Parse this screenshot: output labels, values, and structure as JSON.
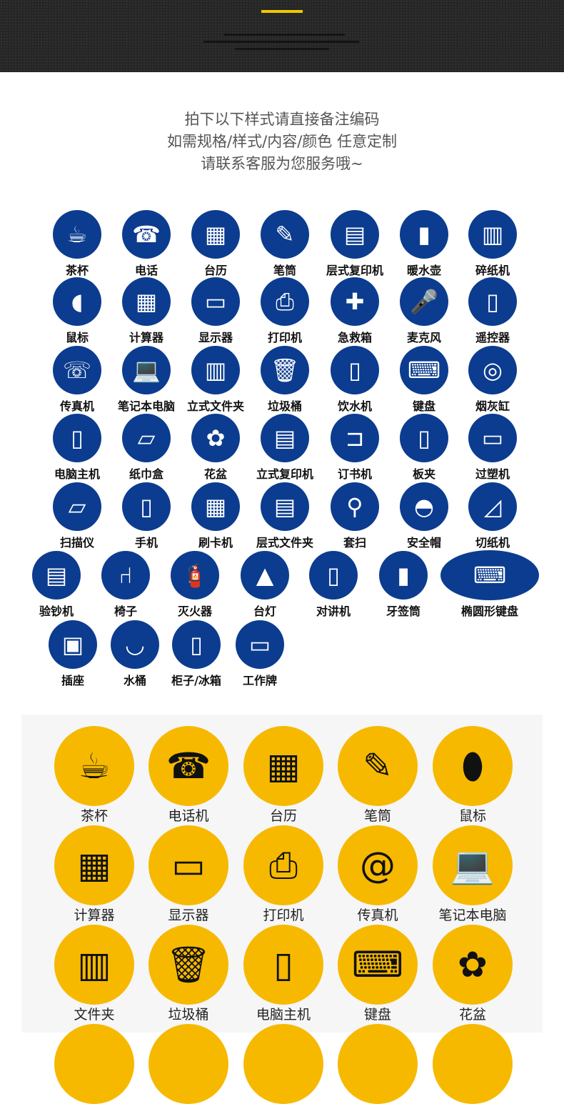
{
  "colors": {
    "header_bg": "#262626",
    "accent": "#f0c800",
    "blue_icon": "#0b3c8f",
    "yellow_icon": "#f6b900"
  },
  "intro": [
    "拍下以下样式请直接备注编码",
    "如需规格/样式/内容/颜色 任意定制",
    "请联系客服为您服务哦~"
  ],
  "blue_rows": [
    [
      {
        "label": "茶杯",
        "icon": "☕"
      },
      {
        "label": "电话",
        "icon": "☎"
      },
      {
        "label": "台历",
        "icon": "▦"
      },
      {
        "label": "笔筒",
        "icon": "✎"
      },
      {
        "label": "层式复印机",
        "icon": "▤"
      },
      {
        "label": "暖水壶",
        "icon": "▮"
      },
      {
        "label": "碎纸机",
        "icon": "▥"
      }
    ],
    [
      {
        "label": "鼠标",
        "icon": "◖"
      },
      {
        "label": "计算器",
        "icon": "▦"
      },
      {
        "label": "显示器",
        "icon": "▭"
      },
      {
        "label": "打印机",
        "icon": "⎙"
      },
      {
        "label": "急救箱",
        "icon": "✚"
      },
      {
        "label": "麦克风",
        "icon": "🎤"
      },
      {
        "label": "遥控器",
        "icon": "▯"
      }
    ],
    [
      {
        "label": "传真机",
        "icon": "☏"
      },
      {
        "label": "笔记本电脑",
        "icon": "💻"
      },
      {
        "label": "立式文件夹",
        "icon": "▥"
      },
      {
        "label": "垃圾桶",
        "icon": "🗑"
      },
      {
        "label": "饮水机",
        "icon": "▯"
      },
      {
        "label": "键盘",
        "icon": "⌨"
      },
      {
        "label": "烟灰缸",
        "icon": "◎"
      }
    ],
    [
      {
        "label": "电脑主机",
        "icon": "▯"
      },
      {
        "label": "纸巾盒",
        "icon": "▱"
      },
      {
        "label": "花盆",
        "icon": "✿"
      },
      {
        "label": "立式复印机",
        "icon": "▤"
      },
      {
        "label": "订书机",
        "icon": "⊐"
      },
      {
        "label": "板夹",
        "icon": "▯"
      },
      {
        "label": "过塑机",
        "icon": "▭"
      }
    ],
    [
      {
        "label": "扫描仪",
        "icon": "▱"
      },
      {
        "label": "手机",
        "icon": "▯"
      },
      {
        "label": "刷卡机",
        "icon": "▦"
      },
      {
        "label": "层式文件夹",
        "icon": "▤"
      },
      {
        "label": "套扫",
        "icon": "⚲"
      },
      {
        "label": "安全帽",
        "icon": "◓"
      },
      {
        "label": "切纸机",
        "icon": "◿"
      }
    ],
    [
      {
        "label": "验钞机",
        "icon": "▤"
      },
      {
        "label": "椅子",
        "icon": "⑁"
      },
      {
        "label": "灭火器",
        "icon": "🧯"
      },
      {
        "label": "台灯",
        "icon": "▲"
      },
      {
        "label": "对讲机",
        "icon": "▯"
      },
      {
        "label": "牙签筒",
        "icon": "▮"
      },
      {
        "label": "椭圆形键盘",
        "icon": "⌨"
      }
    ],
    [
      {
        "label": "插座",
        "icon": "▣"
      },
      {
        "label": "水桶",
        "icon": "◡"
      },
      {
        "label": "柜子/冰箱",
        "icon": "▯"
      },
      {
        "label": "工作牌",
        "icon": "▭"
      }
    ]
  ],
  "yellow_rows": [
    [
      {
        "label": "茶杯",
        "icon": "☕"
      },
      {
        "label": "电话机",
        "icon": "☎"
      },
      {
        "label": "台历",
        "icon": "▦"
      },
      {
        "label": "笔筒",
        "icon": "✎"
      },
      {
        "label": "鼠标",
        "icon": "⬮"
      }
    ],
    [
      {
        "label": "计算器",
        "icon": "▦"
      },
      {
        "label": "显示器",
        "icon": "▭"
      },
      {
        "label": "打印机",
        "icon": "⎙"
      },
      {
        "label": "传真机",
        "icon": "@"
      },
      {
        "label": "笔记本电脑",
        "icon": "💻"
      }
    ],
    [
      {
        "label": "文件夹",
        "icon": "▥"
      },
      {
        "label": "垃圾桶",
        "icon": "🗑"
      },
      {
        "label": "电脑主机",
        "icon": "▯"
      },
      {
        "label": "键盘",
        "icon": "⌨"
      },
      {
        "label": "花盆",
        "icon": "✿"
      }
    ],
    [
      {
        "label": "",
        "icon": ""
      },
      {
        "label": "",
        "icon": ""
      },
      {
        "label": "",
        "icon": ""
      },
      {
        "label": "",
        "icon": ""
      },
      {
        "label": "",
        "icon": ""
      }
    ]
  ]
}
